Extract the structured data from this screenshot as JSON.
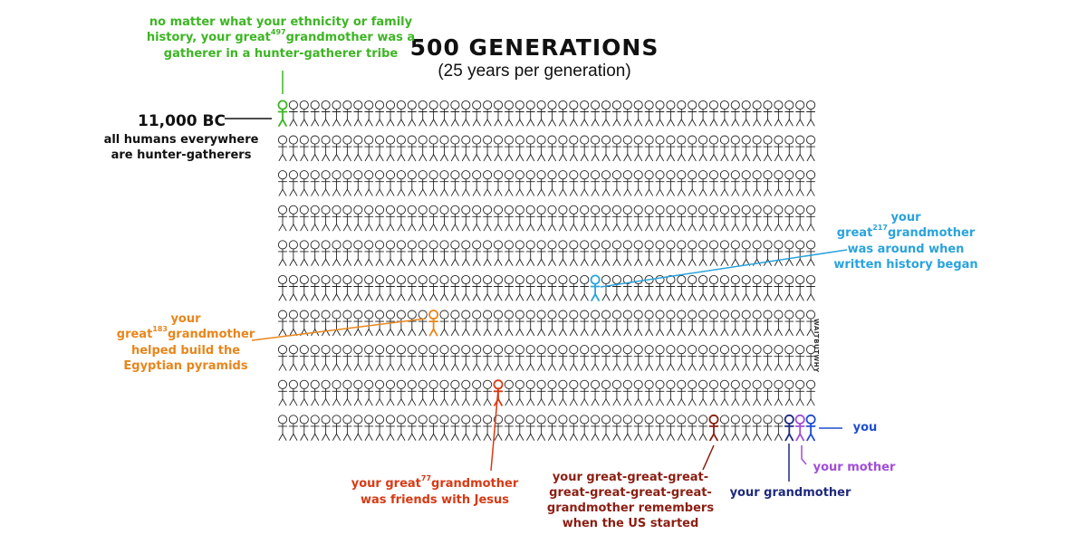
{
  "title": "500 GENERATIONS",
  "subtitle": "(25 years per generation)",
  "grid": {
    "rows": 10,
    "cols": 50,
    "total_generations": 500,
    "years_per_generation": 25
  },
  "bc_label": {
    "year": "11,000 BC",
    "line1": "all humans everywhere",
    "line2": "are hunter-gatherers"
  },
  "signature": "WAITBUTWHY",
  "colors": {
    "gatherer": "#3db524",
    "history": "#2aa3dc",
    "pyramids": "#e8861c",
    "jesus": "#d73a14",
    "us": "#8b1e12",
    "grandmother": "#1f2a7d",
    "mother": "#a14ed6",
    "you": "#1f4dd1",
    "default": "#222222"
  },
  "annotations": {
    "gatherer": {
      "line1": "no matter what your ethnicity or family",
      "line2_pre": "history, your great",
      "line2_sup": "497",
      "line2_post": "grandmother was a",
      "line3": "gatherer in a hunter-gatherer tribe"
    },
    "history": {
      "line1": "your",
      "line2_pre": "great",
      "line2_sup": "217",
      "line2_post": "grandmother",
      "line3": "was around when",
      "line4": "written history began"
    },
    "pyramids": {
      "line1": "your",
      "line2_pre": "great",
      "line2_sup": "183",
      "line2_post": "grandmother",
      "line3": "helped build the",
      "line4": "Egyptian pyramids"
    },
    "jesus": {
      "line1_pre": "your great",
      "line1_sup": "77",
      "line1_post": "grandmother",
      "line2": "was friends with Jesus"
    },
    "us": {
      "line1": "your great-great-great-",
      "line2": "great-great-great-great-",
      "line3": "grandmother remembers",
      "line4": "when the US started"
    },
    "grandmother": {
      "text": "your grandmother"
    },
    "mother": {
      "text": "your mother"
    },
    "you": {
      "text": "you"
    }
  }
}
